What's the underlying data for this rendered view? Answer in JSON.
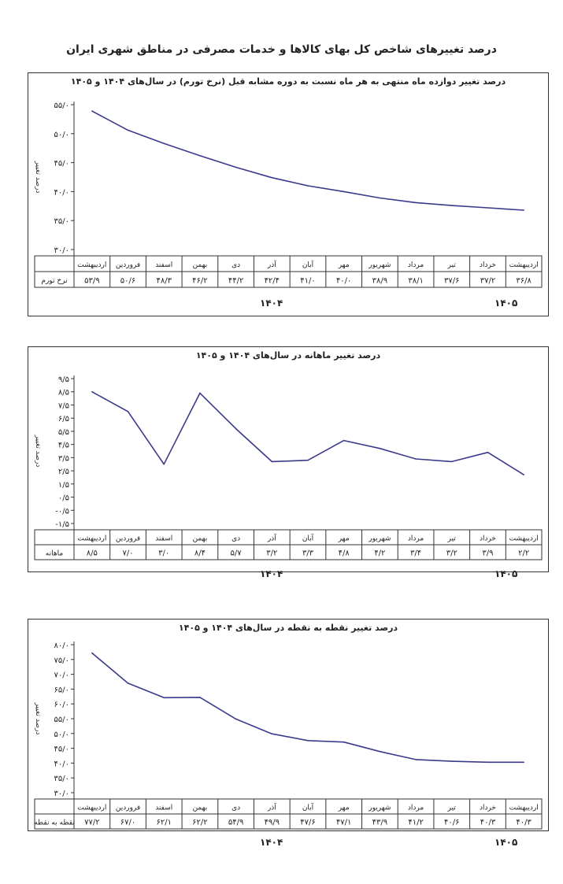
{
  "page_title": "درصد تغییرهای شاخص کل بهای کالاها و خدمات مصرفی در مناطق شهری ایران",
  "years": {
    "y1404": "۱۴۰۴",
    "y1405": "۱۴۰۵"
  },
  "colors": {
    "line": "#3a3a8c",
    "axis": "#333333"
  },
  "chart_data": [
    {
      "type": "line",
      "title": "درصد تغییر دوازده ماه منتهی به هر ماه نسبت به دوره مشابه قبل (نرخ تورم) در سال‌های ۱۴۰۴ و ۱۴۰۵",
      "ylabel": "درصد تغییر",
      "ylim": [
        30,
        55
      ],
      "yticks": [
        30,
        35,
        40,
        45,
        50,
        55
      ],
      "ytick_labels": [
        "۳۰/۰",
        "۳۵/۰",
        "۴۰/۰",
        "۴۵/۰",
        "۵۰/۰",
        "۵۵/۰"
      ],
      "categories": [
        "اردیبهشت",
        "خرداد",
        "تیر",
        "مرداد",
        "شهریور",
        "مهر",
        "آبان",
        "آذر",
        "دی",
        "بهمن",
        "اسفند",
        "فروردین",
        "اردیبهشت"
      ],
      "series": [
        {
          "name": "نرخ تورم",
          "values": [
            36.8,
            37.2,
            37.6,
            38.1,
            38.9,
            40.0,
            41.0,
            42.4,
            44.2,
            46.2,
            48.3,
            50.6,
            53.9
          ]
        }
      ],
      "value_labels": [
        "۳۶/۸",
        "۳۷/۲",
        "۳۷/۶",
        "۳۸/۱",
        "۳۸/۹",
        "۴۰/۰",
        "۴۱/۰",
        "۴۲/۴",
        "۴۴/۲",
        "۴۶/۲",
        "۴۸/۳",
        "۵۰/۶",
        "۵۳/۹"
      ],
      "grid": false
    },
    {
      "type": "line",
      "title": "درصد تغییر ماهانه در سال‌های ۱۴۰۴ و ۱۴۰۵",
      "ylabel": "درصد تغییر",
      "ylim": [
        -1.5,
        9.5
      ],
      "yticks": [
        -1.5,
        -0.5,
        0.5,
        1.5,
        2.5,
        3.5,
        4.5,
        5.5,
        6.5,
        7.5,
        8.5,
        9.5
      ],
      "ytick_labels": [
        "-۱/۵",
        "-۰/۵",
        "۰/۵",
        "۱/۵",
        "۲/۵",
        "۳/۵",
        "۴/۵",
        "۵/۵",
        "۶/۵",
        "۷/۵",
        "۸/۵",
        "۹/۵"
      ],
      "categories": [
        "اردیبهشت",
        "خرداد",
        "تیر",
        "مرداد",
        "شهریور",
        "مهر",
        "آبان",
        "آذر",
        "دی",
        "بهمن",
        "اسفند",
        "فروردین",
        "اردیبهشت"
      ],
      "series": [
        {
          "name": "ماهانه",
          "values": [
            2.2,
            3.9,
            3.2,
            3.4,
            4.2,
            4.8,
            3.3,
            3.2,
            5.7,
            8.4,
            3.0,
            7.0,
            8.5
          ]
        }
      ],
      "value_labels": [
        "۲/۲",
        "۳/۹",
        "۳/۲",
        "۳/۴",
        "۴/۲",
        "۴/۸",
        "۳/۳",
        "۳/۲",
        "۵/۷",
        "۸/۴",
        "۳/۰",
        "۷/۰",
        "۸/۵"
      ],
      "grid": false
    },
    {
      "type": "line",
      "title": "درصد تغییر نقطه به نقطه در سال‌های ۱۴۰۴ و ۱۴۰۵",
      "ylabel": "درصد تغییر",
      "ylim": [
        30,
        80
      ],
      "yticks": [
        30,
        35,
        40,
        45,
        50,
        55,
        60,
        65,
        70,
        75,
        80
      ],
      "ytick_labels": [
        "۳۰/۰",
        "۳۵/۰",
        "۴۰/۰",
        "۴۵/۰",
        "۵۰/۰",
        "۵۵/۰",
        "۶۰/۰",
        "۶۵/۰",
        "۷۰/۰",
        "۷۵/۰",
        "۸۰/۰"
      ],
      "categories": [
        "اردیبهشت",
        "خرداد",
        "تیر",
        "مرداد",
        "شهریور",
        "مهر",
        "آبان",
        "آذر",
        "دی",
        "بهمن",
        "اسفند",
        "فروردین",
        "اردیبهشت"
      ],
      "series": [
        {
          "name": "نقطه به نقطه",
          "values": [
            40.3,
            40.3,
            40.6,
            41.2,
            43.9,
            47.1,
            47.6,
            49.9,
            54.9,
            62.2,
            62.1,
            67.0,
            77.2
          ]
        }
      ],
      "value_labels": [
        "۴۰/۳",
        "۴۰/۳",
        "۴۰/۶",
        "۴۱/۲",
        "۴۳/۹",
        "۴۷/۱",
        "۴۷/۶",
        "۴۹/۹",
        "۵۴/۹",
        "۶۲/۲",
        "۶۲/۱",
        "۶۷/۰",
        "۷۷/۲"
      ],
      "grid": false
    }
  ]
}
